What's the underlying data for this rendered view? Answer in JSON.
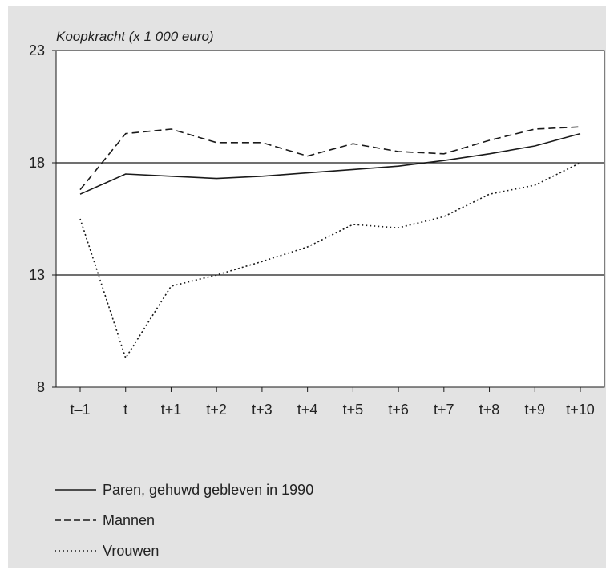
{
  "chart_data": {
    "type": "line",
    "ylabel": "Koopkracht (x 1 000 euro)",
    "categories": [
      "t–1",
      "t",
      "t+1",
      "t+2",
      "t+3",
      "t+4",
      "t+5",
      "t+6",
      "t+7",
      "t+8",
      "t+9",
      "t+10"
    ],
    "yticks": [
      "8",
      "13",
      "18",
      "23"
    ],
    "ylim": [
      8,
      23
    ],
    "reference_lines": [
      13,
      18
    ],
    "series": [
      {
        "name": "Paren, gehuwd gebleven in 1990",
        "style": "solid",
        "values": [
          16.6,
          17.5,
          17.4,
          17.3,
          17.4,
          17.55,
          17.7,
          17.85,
          18.1,
          18.4,
          18.75,
          19.3
        ]
      },
      {
        "name": "Mannen",
        "style": "dashed",
        "values": [
          16.8,
          19.3,
          19.5,
          18.9,
          18.9,
          18.3,
          18.85,
          18.5,
          18.4,
          19.0,
          19.5,
          19.6
        ]
      },
      {
        "name": "Vrouwen",
        "style": "dotted",
        "values": [
          15.5,
          9.3,
          12.5,
          13.0,
          13.6,
          14.25,
          15.25,
          15.1,
          15.6,
          16.6,
          17.0,
          18.0
        ]
      }
    ],
    "grid": false,
    "legend_position": "bottom-left"
  },
  "colors": {
    "panel": "#e3e3e3",
    "plot": "#ffffff",
    "line": "#1a1a1a"
  }
}
